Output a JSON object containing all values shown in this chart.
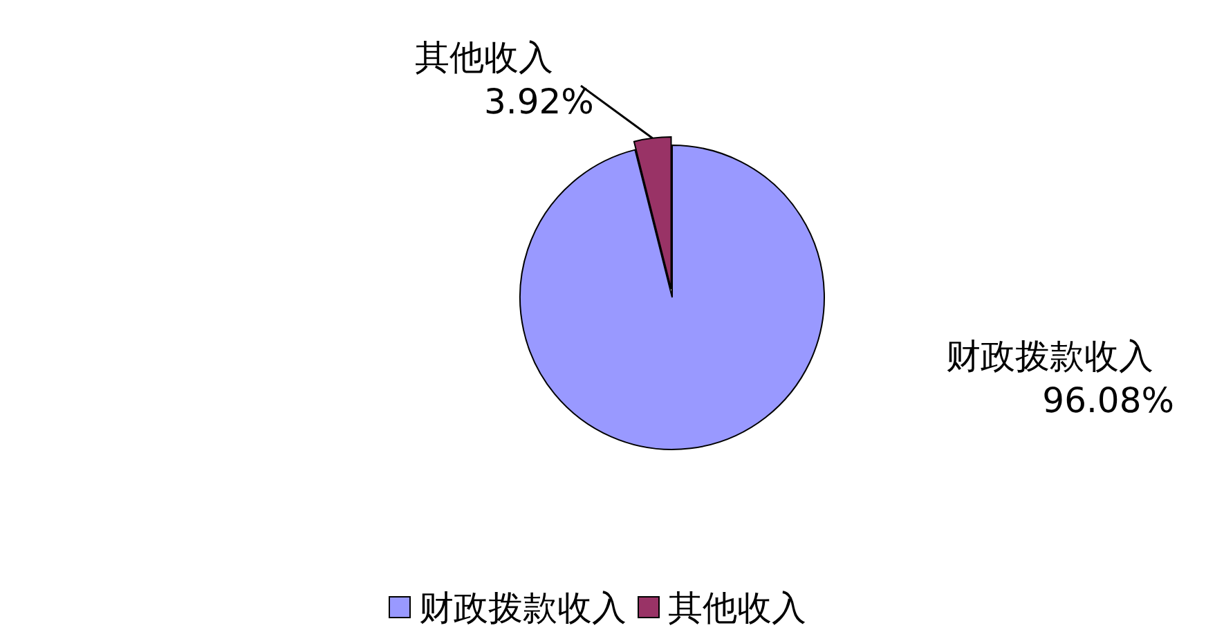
{
  "chart_data": {
    "type": "pie",
    "categories": [
      "财政拨款收入",
      "其他收入"
    ],
    "values": [
      96.08,
      3.92
    ],
    "colors": [
      "#9999ff",
      "#993366"
    ],
    "value_labels": [
      "96.08%",
      "3.92%"
    ],
    "legend": "bottom"
  }
}
